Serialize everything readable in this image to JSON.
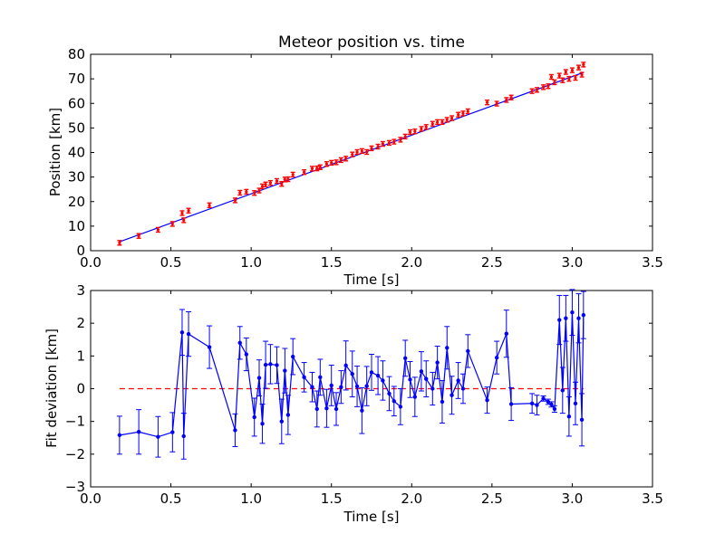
{
  "chart_data": [
    {
      "type": "scatter",
      "title": "Meteor position vs. time",
      "xlabel": "Time [s]",
      "ylabel": "Position [km]",
      "xlim": [
        0.0,
        3.5
      ],
      "ylim": [
        0,
        80
      ],
      "xticks": [
        "0.0",
        "0.5",
        "1.0",
        "1.5",
        "2.0",
        "2.5",
        "3.0",
        "3.5"
      ],
      "yticks": [
        "0",
        "10",
        "20",
        "30",
        "40",
        "50",
        "60",
        "70",
        "80"
      ],
      "grid": false,
      "colors": {
        "points": "#ff0000",
        "fit": "#0000ff"
      },
      "fit_line": {
        "x": [
          0.18,
          3.07
        ],
        "y": [
          3.6,
          72.6
        ]
      },
      "series": [
        {
          "x": [
            0.18,
            0.3,
            0.42,
            0.51,
            0.57,
            0.58,
            0.61,
            0.74,
            0.9,
            0.93,
            0.97,
            1.02,
            1.05,
            1.07,
            1.09,
            1.12,
            1.16,
            1.19,
            1.21,
            1.23,
            1.26,
            1.33,
            1.38,
            1.41,
            1.43,
            1.47,
            1.5,
            1.53,
            1.56,
            1.59,
            1.63,
            1.66,
            1.69,
            1.72,
            1.75,
            1.79,
            1.82,
            1.86,
            1.89,
            1.93,
            1.96,
            1.99,
            2.02,
            2.06,
            2.09,
            2.13,
            2.16,
            2.19,
            2.22,
            2.25,
            2.29,
            2.32,
            2.35,
            2.47,
            2.53,
            2.59,
            2.62,
            2.75,
            2.78,
            2.82,
            2.85,
            2.87,
            2.89,
            2.92,
            2.94,
            2.96,
            2.98,
            3.0,
            3.02,
            3.04,
            3.06,
            3.07
          ],
          "y": [
            3.2,
            6.0,
            8.5,
            10.9,
            15.3,
            12.4,
            16.3,
            18.5,
            20.5,
            23.6,
            24.0,
            23.5,
            24.5,
            26.2,
            27.0,
            27.6,
            28.4,
            27.2,
            29.0,
            29.1,
            31.0,
            32.0,
            33.4,
            33.5,
            34.0,
            35.3,
            35.8,
            36.0,
            36.9,
            37.5,
            39.2,
            40.2,
            40.6,
            40.2,
            41.7,
            42.4,
            43.5,
            43.9,
            44.4,
            45.2,
            46.5,
            48.3,
            48.6,
            49.6,
            50.4,
            51.7,
            52.4,
            52.4,
            53.3,
            54.0,
            55.4,
            55.9,
            56.8,
            60.4,
            59.9,
            61.4,
            62.4,
            65.0,
            65.5,
            66.6,
            67.0,
            70.8,
            68.6,
            71.3,
            69.4,
            72.8,
            70.0,
            73.5,
            70.4,
            74.6,
            71.7,
            75.8
          ]
        }
      ]
    },
    {
      "type": "line",
      "xlabel": "Time [s]",
      "ylabel": "Fit deviation [km]",
      "xlim": [
        0.0,
        3.5
      ],
      "ylim": [
        -3,
        3
      ],
      "xticks": [
        "0.0",
        "0.5",
        "1.0",
        "1.5",
        "2.0",
        "2.5",
        "3.0",
        "3.5"
      ],
      "yticks": [
        "−3",
        "−2",
        "−1",
        "0",
        "1",
        "2",
        "3"
      ],
      "grid": false,
      "colors": {
        "series": "#0000ff",
        "reference": "#ff0000"
      },
      "reference_line": {
        "y": 0,
        "style": "dashed",
        "x": [
          0.18,
          3.07
        ]
      },
      "series": [
        {
          "x": [
            0.18,
            0.3,
            0.42,
            0.51,
            0.57,
            0.58,
            0.61,
            0.74,
            0.9,
            0.93,
            0.97,
            1.02,
            1.05,
            1.07,
            1.09,
            1.12,
            1.16,
            1.19,
            1.21,
            1.23,
            1.26,
            1.33,
            1.38,
            1.41,
            1.43,
            1.47,
            1.5,
            1.53,
            1.56,
            1.59,
            1.63,
            1.66,
            1.69,
            1.72,
            1.75,
            1.79,
            1.82,
            1.86,
            1.89,
            1.93,
            1.96,
            1.99,
            2.02,
            2.06,
            2.09,
            2.13,
            2.16,
            2.19,
            2.22,
            2.25,
            2.29,
            2.32,
            2.35,
            2.47,
            2.53,
            2.59,
            2.62,
            2.75,
            2.78,
            2.82,
            2.85,
            2.87,
            2.89,
            2.92,
            2.94,
            2.96,
            2.98,
            3.0,
            3.02,
            3.04,
            3.06,
            3.07
          ],
          "y": [
            -1.42,
            -1.32,
            -1.47,
            -1.33,
            1.72,
            -1.45,
            1.67,
            1.27,
            -1.27,
            1.4,
            1.05,
            -0.87,
            0.33,
            -1.07,
            0.73,
            0.75,
            0.72,
            -1.0,
            0.55,
            -0.8,
            0.98,
            0.35,
            0.05,
            -0.62,
            0.35,
            -0.6,
            0.1,
            -0.62,
            0.05,
            0.71,
            0.45,
            0.07,
            -0.67,
            0.08,
            0.5,
            0.4,
            0.25,
            -0.15,
            -0.38,
            -0.55,
            0.93,
            0.28,
            -0.25,
            0.53,
            0.3,
            0.0,
            0.8,
            -0.4,
            1.25,
            -0.2,
            0.25,
            0.0,
            1.15,
            -0.35,
            0.95,
            1.68,
            -0.47,
            -0.45,
            -0.5,
            -0.3,
            -0.4,
            -0.48,
            -0.62,
            2.1,
            -0.05,
            2.15,
            -0.85,
            2.33,
            -0.45,
            2.15,
            -0.95,
            2.25
          ],
          "error": [
            0.58,
            0.68,
            0.62,
            0.6,
            0.7,
            0.7,
            0.68,
            0.65,
            0.5,
            0.5,
            0.5,
            0.58,
            0.55,
            0.6,
            0.72,
            0.6,
            0.56,
            0.68,
            0.68,
            0.6,
            0.55,
            0.45,
            0.45,
            0.55,
            0.55,
            0.58,
            0.62,
            0.5,
            0.5,
            0.75,
            0.7,
            0.62,
            0.7,
            0.6,
            0.55,
            0.58,
            0.6,
            0.52,
            0.45,
            0.55,
            0.55,
            0.55,
            0.6,
            0.6,
            0.55,
            0.5,
            0.5,
            0.65,
            0.65,
            0.58,
            0.55,
            0.45,
            0.5,
            0.4,
            0.5,
            0.72,
            0.5,
            0.3,
            0.3,
            0.08,
            0.08,
            0.08,
            0.1,
            0.75,
            0.7,
            0.7,
            0.6,
            0.7,
            0.65,
            0.75,
            0.8,
            0.72
          ]
        }
      ]
    }
  ]
}
